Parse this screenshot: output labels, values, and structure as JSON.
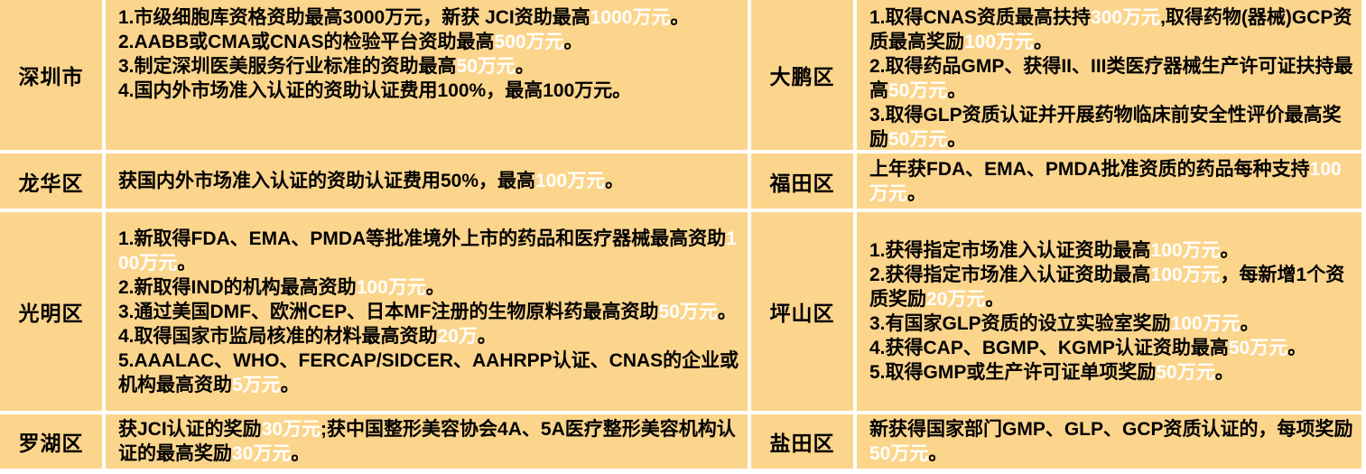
{
  "table": {
    "cell_bg": "#FCD58C",
    "grid_color": "#FFFFFF",
    "page_bg": "#FFFFFF",
    "text_color": "#000000",
    "highlight_text_color": "#FFFFFF",
    "rows": [
      {
        "cells": [
          {
            "type": "district",
            "text": "深圳市"
          },
          {
            "type": "content",
            "items": [
              [
                {
                  "t": "1.市级细胞库资格资助最高3000万元，新获 JCI资助最高",
                  "hl": false
                },
                {
                  "t": "1000万元",
                  "hl": true
                },
                {
                  "t": "。",
                  "hl": false
                }
              ],
              [
                {
                  "t": "2.AABB或CMA或CNAS的检验平台资助最高",
                  "hl": false
                },
                {
                  "t": "500万元",
                  "hl": true
                },
                {
                  "t": "。",
                  "hl": false
                }
              ],
              [
                {
                  "t": "3.制定深圳医美服务行业标准的资助最高",
                  "hl": false
                },
                {
                  "t": "50万元",
                  "hl": true
                },
                {
                  "t": "。",
                  "hl": false
                }
              ],
              [
                {
                  "t": "4.国内外市场准入认证的资助认证费用100%，最高100万元。",
                  "hl": false
                }
              ]
            ]
          },
          {
            "type": "district",
            "text": "大鹏区"
          },
          {
            "type": "content",
            "items": [
              [
                {
                  "t": "1.取得CNAS资质最高扶持",
                  "hl": false
                },
                {
                  "t": "300万元",
                  "hl": true
                },
                {
                  "t": ",取得药物(器械)GCP资质最高奖励",
                  "hl": false
                },
                {
                  "t": "100万元",
                  "hl": true
                },
                {
                  "t": "。",
                  "hl": false
                }
              ],
              [
                {
                  "t": "2.取得药品GMP、获得II、III类医疗器械生产许可证扶持最高",
                  "hl": false
                },
                {
                  "t": "50万元",
                  "hl": true
                },
                {
                  "t": "。",
                  "hl": false
                }
              ],
              [
                {
                  "t": "3.取得GLP资质认证并开展药物临床前安全性评价最高奖励",
                  "hl": false
                },
                {
                  "t": "50万元",
                  "hl": true
                },
                {
                  "t": "。",
                  "hl": false
                }
              ]
            ]
          }
        ]
      },
      {
        "cells": [
          {
            "type": "district",
            "text": "龙华区"
          },
          {
            "type": "content",
            "items": [
              [
                {
                  "t": "获国内外市场准入认证的资助认证费用50%，最高",
                  "hl": false
                },
                {
                  "t": "100万元",
                  "hl": true
                },
                {
                  "t": "。",
                  "hl": false
                }
              ]
            ]
          },
          {
            "type": "district",
            "text": "福田区"
          },
          {
            "type": "content",
            "items": [
              [
                {
                  "t": "上年获FDA、EMA、PMDA批准资质的药品每种支持",
                  "hl": false
                },
                {
                  "t": "100万元",
                  "hl": true
                },
                {
                  "t": "。",
                  "hl": false
                }
              ]
            ]
          }
        ]
      },
      {
        "cells": [
          {
            "type": "district",
            "text": "光明区"
          },
          {
            "type": "content",
            "items": [
              [
                {
                  "t": "1.新取得FDA、EMA、PMDA等批准境外上市的药品和医疗器械最高资助",
                  "hl": false
                },
                {
                  "t": "100万元",
                  "hl": true
                },
                {
                  "t": "。",
                  "hl": false
                }
              ],
              [
                {
                  "t": "2.新取得IND的机构最高资助",
                  "hl": false
                },
                {
                  "t": "100万元",
                  "hl": true
                },
                {
                  "t": "。",
                  "hl": false
                }
              ],
              [
                {
                  "t": "3.通过美国DMF、欧洲CEP、日本MF注册的生物原料药最高资助",
                  "hl": false
                },
                {
                  "t": "50万元",
                  "hl": true
                },
                {
                  "t": "。",
                  "hl": false
                }
              ],
              [
                {
                  "t": "4.取得国家市监局核准的材料最高资助",
                  "hl": false
                },
                {
                  "t": "20万",
                  "hl": true
                },
                {
                  "t": "。",
                  "hl": false
                }
              ],
              [
                {
                  "t": "5.AAALAC、WHO、FERCAP/SIDCER、AAHRPP认证、CNAS的企业或机构最高资助",
                  "hl": false
                },
                {
                  "t": "5万元",
                  "hl": true
                },
                {
                  "t": "。",
                  "hl": false
                }
              ]
            ]
          },
          {
            "type": "district",
            "text": "坪山区"
          },
          {
            "type": "content",
            "items": [
              [
                {
                  "t": "1.获得指定市场准入认证资助最高",
                  "hl": false
                },
                {
                  "t": "100万元",
                  "hl": true
                },
                {
                  "t": "。",
                  "hl": false
                }
              ],
              [
                {
                  "t": "2.获得指定市场准入认证资助最高",
                  "hl": false
                },
                {
                  "t": "100万元",
                  "hl": true
                },
                {
                  "t": "，每新增1个资质奖励",
                  "hl": false
                },
                {
                  "t": "20万元",
                  "hl": true
                },
                {
                  "t": "。",
                  "hl": false
                }
              ],
              [
                {
                  "t": "3.有国家GLP资质的设立实验室奖励",
                  "hl": false
                },
                {
                  "t": "100万元",
                  "hl": true
                },
                {
                  "t": "。",
                  "hl": false
                }
              ],
              [
                {
                  "t": "4.获得CAP、BGMP、KGMP认证资助最高",
                  "hl": false
                },
                {
                  "t": "50万元",
                  "hl": true
                },
                {
                  "t": "。",
                  "hl": false
                }
              ],
              [
                {
                  "t": "5.取得GMP或生产许可证单项奖励",
                  "hl": false
                },
                {
                  "t": "50万元",
                  "hl": true
                },
                {
                  "t": "。",
                  "hl": false
                }
              ]
            ]
          }
        ]
      },
      {
        "cells": [
          {
            "type": "district",
            "text": "罗湖区"
          },
          {
            "type": "content",
            "items": [
              [
                {
                  "t": "获JCI认证的奖励",
                  "hl": false
                },
                {
                  "t": "30万元",
                  "hl": true
                },
                {
                  "t": ";获中国整形美容协会4A、5A医疗整形美容机构认证的最高奖励",
                  "hl": false
                },
                {
                  "t": "30万元",
                  "hl": true
                },
                {
                  "t": "。",
                  "hl": false
                }
              ]
            ]
          },
          {
            "type": "district",
            "text": "盐田区"
          },
          {
            "type": "content",
            "items": [
              [
                {
                  "t": "新获得国家部门GMP、GLP、GCP资质认证的，每项奖励",
                  "hl": false
                },
                {
                  "t": "50万元",
                  "hl": true
                },
                {
                  "t": "。",
                  "hl": false
                }
              ]
            ]
          }
        ]
      }
    ]
  }
}
